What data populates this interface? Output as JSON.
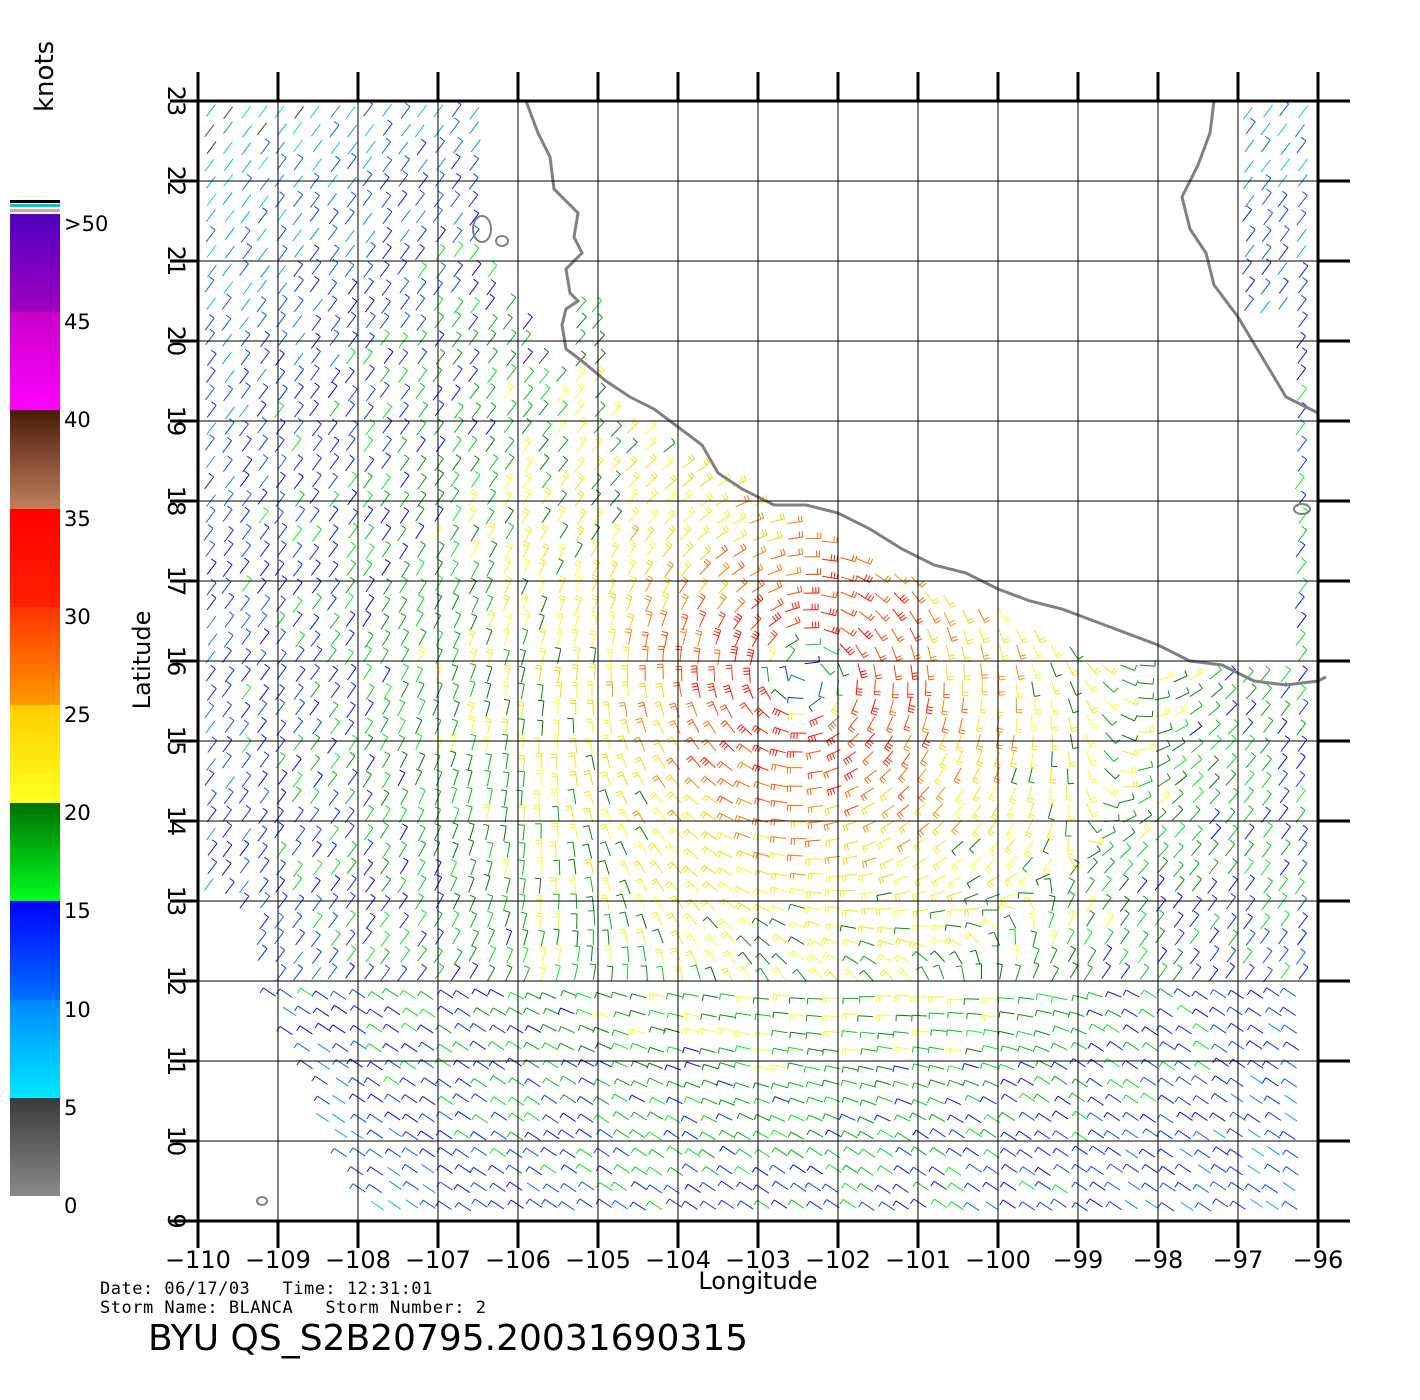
{
  "map": {
    "xlabel": "Longitude",
    "ylabel": "Latitude",
    "lon_range": [
      -110,
      -96
    ],
    "lat_range": [
      9,
      23
    ],
    "lon_ticks": [
      "−110",
      "−109",
      "−108",
      "−107",
      "−106",
      "−105",
      "−104",
      "−103",
      "−102",
      "−101",
      "−100",
      "−99",
      "−98",
      "−97",
      "−96"
    ],
    "lat_ticks": [
      "9",
      "10",
      "11",
      "12",
      "13",
      "14",
      "15",
      "16",
      "17",
      "18",
      "19",
      "20",
      "21",
      "22",
      "23"
    ],
    "grid": true,
    "storm_center": {
      "lon": -102.4,
      "lat": 15.8
    },
    "coast_color": "#808080"
  },
  "colorbar": {
    "units": "knots",
    "labels": [
      ">50",
      "45",
      "40",
      "35",
      "30",
      "25",
      "20",
      "15",
      "10",
      "5",
      "0"
    ],
    "bands": [
      {
        "min": 0,
        "max": 5,
        "top": "#3a3a3a",
        "bottom": "#8a8a8a"
      },
      {
        "min": 5,
        "max": 10,
        "top": "#0088ff",
        "bottom": "#00e8ff"
      },
      {
        "min": 10,
        "max": 15,
        "top": "#0000ff",
        "bottom": "#0070ff"
      },
      {
        "min": 15,
        "max": 20,
        "top": "#007000",
        "bottom": "#00ff20"
      },
      {
        "min": 20,
        "max": 25,
        "top": "#ffcc00",
        "bottom": "#ffff20"
      },
      {
        "min": 25,
        "max": 30,
        "top": "#ff3300",
        "bottom": "#ff9900"
      },
      {
        "min": 30,
        "max": 35,
        "top": "#ff0000",
        "bottom": "#ff2000"
      },
      {
        "min": 35,
        "max": 40,
        "top": "#4a1a0a",
        "bottom": "#c0805a"
      },
      {
        "min": 40,
        "max": 45,
        "top": "#c800c8",
        "bottom": "#ff00ff"
      },
      {
        "min": 45,
        "max": 50,
        "top": "#5000c0",
        "bottom": "#a000c0"
      }
    ],
    "top_stripes": [
      "#e0a0a0",
      "#00cccc",
      "#000000"
    ]
  },
  "footer": {
    "date_line": "Date: 06/17/03   Time: 12:31:01",
    "storm_line": "Storm Name: BLANCA   Storm Number: 2",
    "file_id": "BYU QS_S2B20795.20031690315"
  }
}
